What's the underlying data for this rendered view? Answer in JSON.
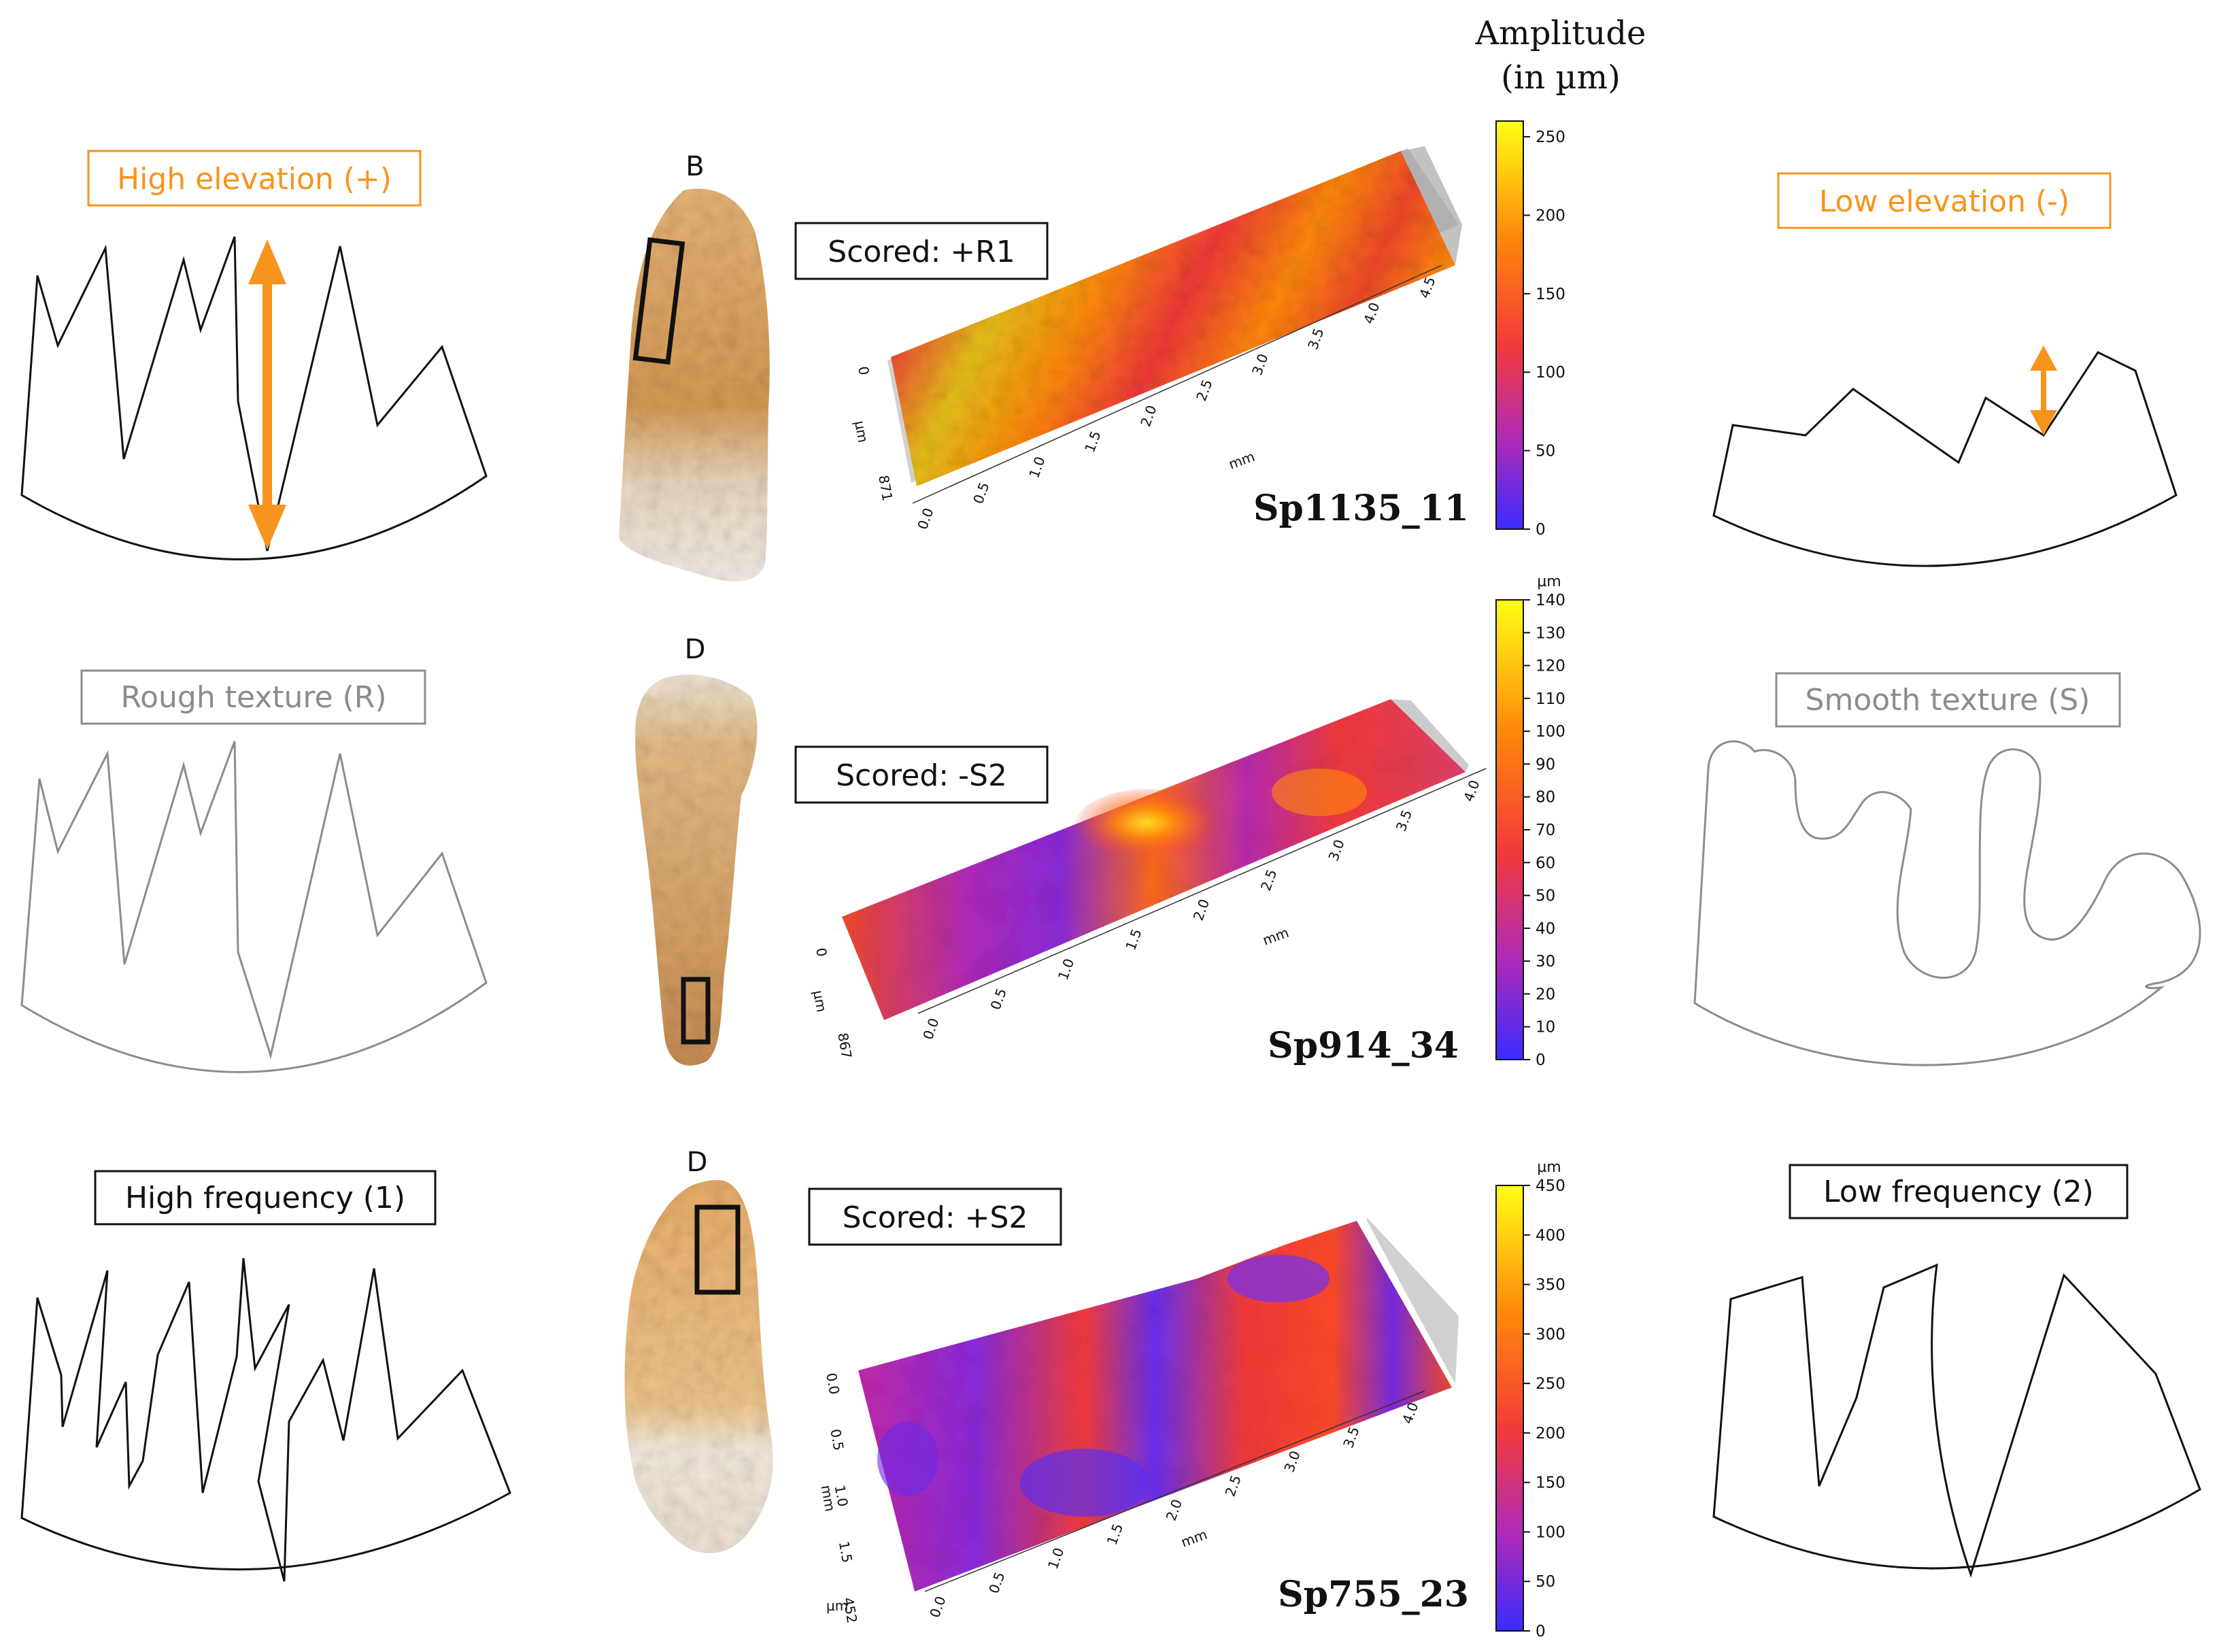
{
  "colorbar_header": {
    "line1": "Amplitude",
    "line2": "(in µm)"
  },
  "concepts": {
    "high_elevation": "High elevation (+)",
    "low_elevation": "Low elevation (-)",
    "rough_texture": "Rough texture (R)",
    "smooth_texture": "Smooth texture (S)",
    "high_frequency": "High frequency (1)",
    "low_frequency": "Low frequency (2)"
  },
  "colors": {
    "highlight": "#f7941d",
    "dark": "#111111",
    "gray": "#8c8c8c",
    "colormap": [
      "#3a2cff",
      "#b02ab8",
      "#f23a3a",
      "#ff8a0a",
      "#ffff14"
    ]
  },
  "samples": [
    {
      "letter": "B",
      "score": "Scored: +R1",
      "id": "Sp1135_11",
      "colorbar": {
        "unit": "",
        "ticks": [
          0,
          50,
          100,
          150,
          200,
          250
        ],
        "max": 260
      },
      "x_ticks": [
        "0.0",
        "0.5",
        "1.0",
        "1.5",
        "2.0",
        "2.5",
        "3.0",
        "3.5",
        "4.0",
        "4.5"
      ],
      "x_label": "mm",
      "y_ticks": [
        "0",
        "871"
      ],
      "y_label": "µm"
    },
    {
      "letter": "D",
      "score": "Scored: -S2",
      "id": "Sp914_34",
      "colorbar": {
        "unit": "µm",
        "ticks": [
          0,
          10,
          20,
          30,
          40,
          50,
          60,
          70,
          80,
          90,
          100,
          110,
          120,
          130,
          140
        ],
        "max": 140
      },
      "x_ticks": [
        "0.0",
        "0.5",
        "1.0",
        "1.5",
        "2.0",
        "2.5",
        "3.0",
        "3.5",
        "4.0"
      ],
      "x_label": "mm",
      "y_ticks": [
        "0",
        "867"
      ],
      "y_label": "µm"
    },
    {
      "letter": "D",
      "score": "Scored: +S2",
      "id": "Sp755_23",
      "colorbar": {
        "unit": "µm",
        "ticks": [
          0,
          50,
          100,
          150,
          200,
          250,
          300,
          350,
          400,
          450
        ],
        "max": 450
      },
      "x_ticks": [
        "0.0",
        "0.5",
        "1.0",
        "1.5",
        "2.0",
        "2.5",
        "3.0",
        "3.5",
        "4.0"
      ],
      "x_label": "mm",
      "y_ticks": [
        "0.0",
        "0.5",
        "1.0",
        "1.5",
        "452"
      ],
      "y_label": "mm",
      "z_label": "µm"
    }
  ]
}
